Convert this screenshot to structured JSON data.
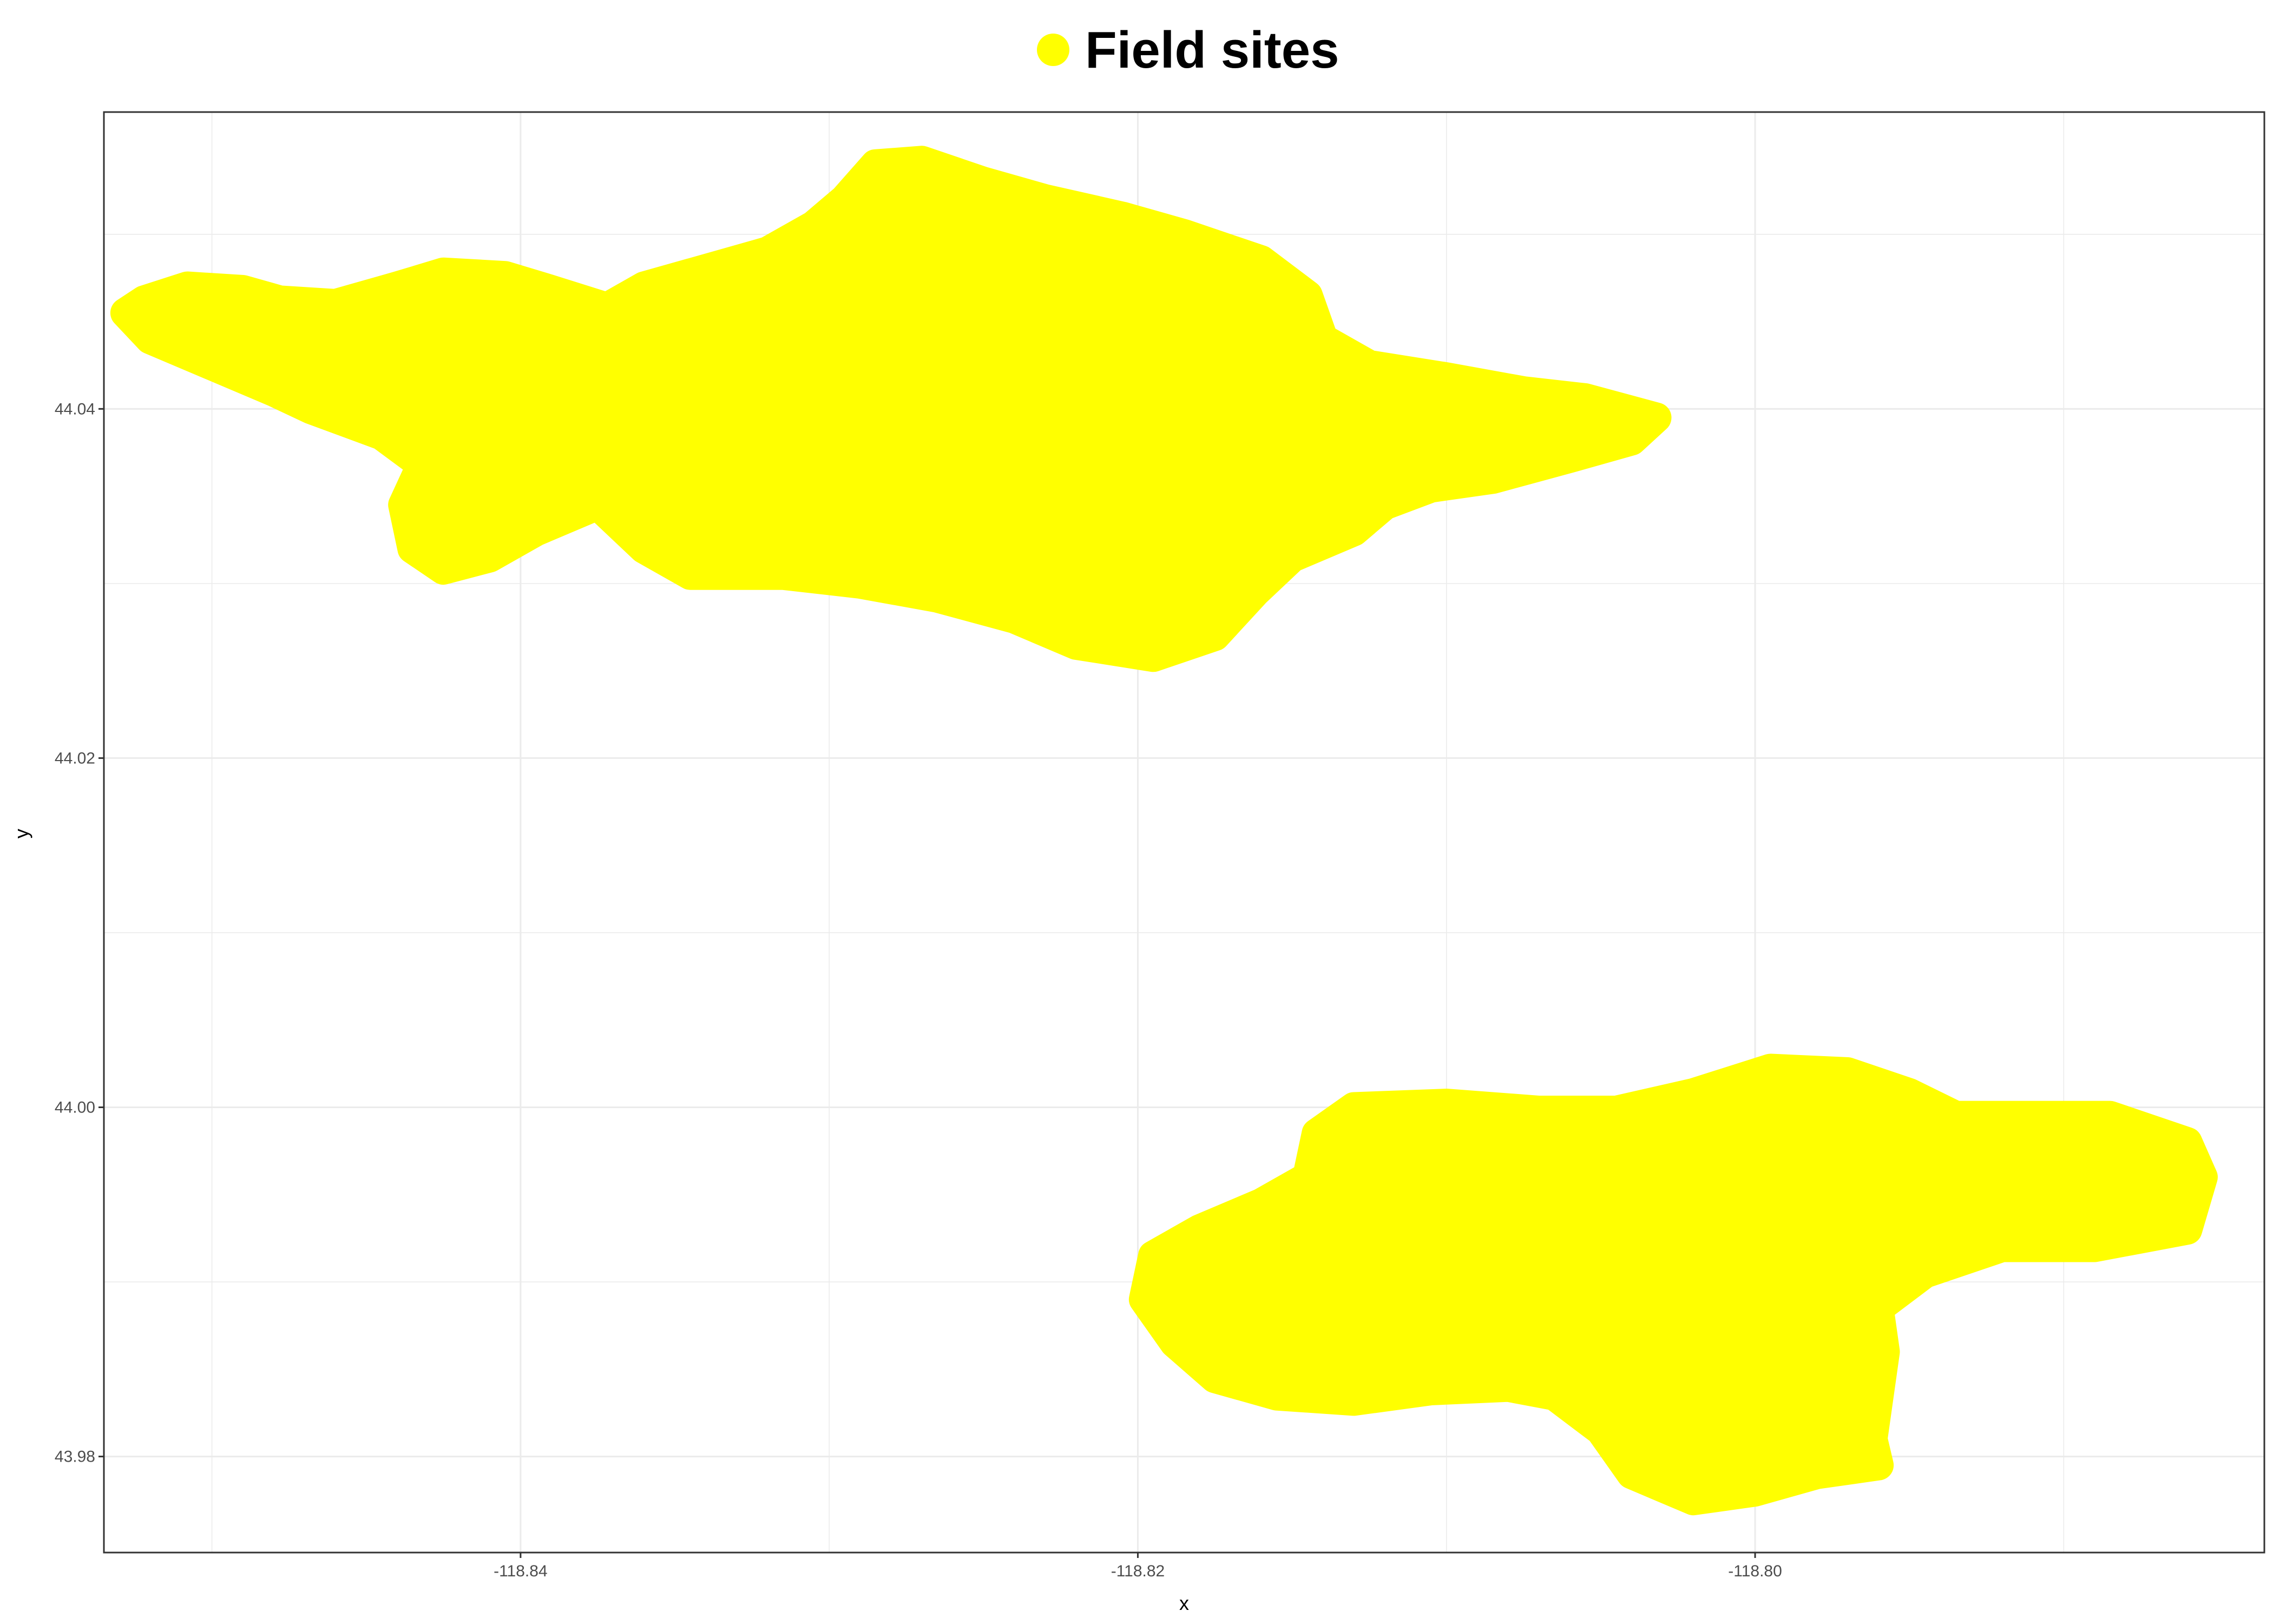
{
  "chart_data": {
    "type": "scatter",
    "legend": {
      "position": "top",
      "label": "Field sites",
      "marker": "circle"
    },
    "xlabel": "x",
    "ylabel": "y",
    "xlim": [
      -118.8535,
      -118.7835
    ],
    "ylim": [
      43.9745,
      44.057
    ],
    "x_ticks": [
      -118.84,
      -118.82,
      -118.8
    ],
    "x_tick_labels": [
      "-118.84",
      "-118.82",
      "-118.80"
    ],
    "y_ticks": [
      43.98,
      44.0,
      44.02,
      44.04
    ],
    "y_tick_labels": [
      "43.98",
      "44.00",
      "44.02",
      "44.04"
    ],
    "grid": true,
    "marker_color": "#FFFF00",
    "regions": [
      {
        "name": "",
        "outline": [
          [
            -118.8522,
            44.0462
          ],
          [
            -118.8508,
            44.047
          ],
          [
            -118.849,
            44.0468
          ],
          [
            -118.8478,
            44.0462
          ],
          [
            -118.846,
            44.046
          ],
          [
            -118.844,
            44.047
          ],
          [
            -118.8425,
            44.0478
          ],
          [
            -118.8405,
            44.0476
          ],
          [
            -118.839,
            44.0468
          ],
          [
            -118.8372,
            44.0458
          ],
          [
            -118.836,
            44.047
          ],
          [
            -118.834,
            44.048
          ],
          [
            -118.832,
            44.049
          ],
          [
            -118.8305,
            44.0505
          ],
          [
            -118.8295,
            44.052
          ],
          [
            -118.8285,
            44.054
          ],
          [
            -118.827,
            44.0542
          ],
          [
            -118.825,
            44.053
          ],
          [
            -118.823,
            44.052
          ],
          [
            -118.8205,
            44.051
          ],
          [
            -118.8185,
            44.05
          ],
          [
            -118.816,
            44.0485
          ],
          [
            -118.8145,
            44.0465
          ],
          [
            -118.814,
            44.044
          ],
          [
            -118.8125,
            44.0425
          ],
          [
            -118.81,
            44.0418
          ],
          [
            -118.8075,
            44.041
          ],
          [
            -118.8055,
            44.0406
          ],
          [
            -118.8032,
            44.0395
          ],
          [
            -118.804,
            44.0382
          ],
          [
            -118.806,
            44.0372
          ],
          [
            -118.8085,
            44.036
          ],
          [
            -118.8105,
            44.0355
          ],
          [
            -118.812,
            44.0345
          ],
          [
            -118.813,
            44.033
          ],
          [
            -118.815,
            44.0315
          ],
          [
            -118.8162,
            44.0295
          ],
          [
            -118.8175,
            44.027
          ],
          [
            -118.8195,
            44.0258
          ],
          [
            -118.822,
            44.0265
          ],
          [
            -118.824,
            44.028
          ],
          [
            -118.8265,
            44.0292
          ],
          [
            -118.829,
            44.03
          ],
          [
            -118.8315,
            44.0305
          ],
          [
            -118.8345,
            44.0305
          ],
          [
            -118.836,
            44.032
          ],
          [
            -118.8375,
            44.0345
          ],
          [
            -118.8395,
            44.033
          ],
          [
            -118.841,
            44.0315
          ],
          [
            -118.8425,
            44.0308
          ],
          [
            -118.8435,
            44.032
          ],
          [
            -118.8438,
            44.0345
          ],
          [
            -118.8432,
            44.0368
          ],
          [
            -118.8445,
            44.0385
          ],
          [
            -118.8468,
            44.04
          ],
          [
            -118.848,
            44.041
          ],
          [
            -118.85,
            44.0425
          ],
          [
            -118.852,
            44.044
          ],
          [
            -118.8528,
            44.0455
          ]
        ]
      },
      {
        "name": "",
        "outline": [
          [
            -118.8195,
            43.9915
          ],
          [
            -118.818,
            43.993
          ],
          [
            -118.816,
            43.9945
          ],
          [
            -118.8145,
            43.996
          ],
          [
            -118.8142,
            43.9985
          ],
          [
            -118.813,
            44.0
          ],
          [
            -118.81,
            44.0002
          ],
          [
            -118.807,
            43.9998
          ],
          [
            -118.8045,
            43.9998
          ],
          [
            -118.802,
            44.0008
          ],
          [
            -118.7995,
            44.0022
          ],
          [
            -118.797,
            44.002
          ],
          [
            -118.795,
            44.0008
          ],
          [
            -118.7935,
            43.9995
          ],
          [
            -118.7905,
            43.9995
          ],
          [
            -118.7885,
            43.9995
          ],
          [
            -118.786,
            43.998
          ],
          [
            -118.7855,
            43.996
          ],
          [
            -118.786,
            43.993
          ],
          [
            -118.789,
            43.992
          ],
          [
            -118.792,
            43.992
          ],
          [
            -118.7945,
            43.9905
          ],
          [
            -118.796,
            43.9885
          ],
          [
            -118.7958,
            43.986
          ],
          [
            -118.796,
            43.9835
          ],
          [
            -118.7962,
            43.981
          ],
          [
            -118.796,
            43.9795
          ],
          [
            -118.798,
            43.979
          ],
          [
            -118.8,
            43.978
          ],
          [
            -118.802,
            43.9775
          ],
          [
            -118.804,
            43.979
          ],
          [
            -118.805,
            43.9815
          ],
          [
            -118.8065,
            43.9835
          ],
          [
            -118.808,
            43.984
          ],
          [
            -118.8105,
            43.9838
          ],
          [
            -118.813,
            43.9832
          ],
          [
            -118.8155,
            43.9835
          ],
          [
            -118.8175,
            43.9845
          ],
          [
            -118.8188,
            43.9865
          ],
          [
            -118.8198,
            43.989
          ]
        ]
      }
    ]
  }
}
